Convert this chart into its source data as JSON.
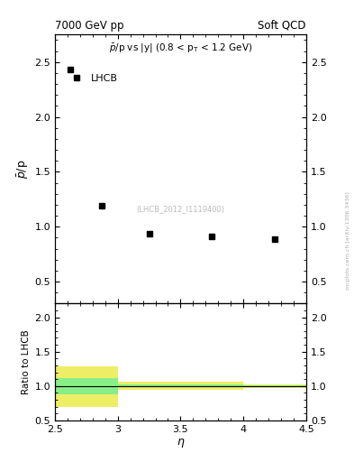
{
  "title_left": "7000 GeV pp",
  "title_right": "Soft QCD",
  "ylabel_main": "$\\bar{p}$/p",
  "ylabel_ratio": "Ratio to LHCB",
  "xlabel": "$\\eta$",
  "legend_label": "LHCB",
  "ref_label": "(LHCB_2012_I1119400)",
  "watermark": "mcplots.cern.ch [arXiv:1306.3436]",
  "main_xlim": [
    2.5,
    4.5
  ],
  "main_ylim": [
    0.3,
    2.75
  ],
  "ratio_xlim": [
    2.5,
    4.5
  ],
  "ratio_ylim": [
    0.5,
    2.2
  ],
  "data_x": [
    2.625,
    2.875,
    3.25,
    3.75,
    4.25
  ],
  "data_y": [
    2.43,
    1.19,
    0.94,
    0.91,
    0.89
  ],
  "yticks_main": [
    0.5,
    1.0,
    1.5,
    2.0,
    2.5
  ],
  "yticks_ratio": [
    0.5,
    1.0,
    1.5,
    2.0
  ],
  "xticks": [
    2.5,
    3.0,
    3.5,
    4.0,
    4.5
  ],
  "xticklabels": [
    "2.5",
    "3",
    "3.5",
    "4",
    "4.5"
  ],
  "green_color": "#88ee88",
  "yellow_color": "#eeee66",
  "bands": [
    {
      "xlo": 2.5,
      "xhi": 3.0,
      "ylo_y": 0.7,
      "yhi_y": 1.28,
      "ylo_g": 0.88,
      "yhi_g": 1.12
    },
    {
      "xlo": 3.0,
      "xhi": 3.5,
      "ylo_y": 0.94,
      "yhi_y": 1.06,
      "ylo_g": 0.98,
      "yhi_g": 1.02
    },
    {
      "xlo": 3.5,
      "xhi": 4.0,
      "ylo_y": 0.94,
      "yhi_y": 1.06,
      "ylo_g": 0.98,
      "yhi_g": 1.02
    },
    {
      "xlo": 4.0,
      "xhi": 4.5,
      "ylo_y": 0.97,
      "yhi_y": 1.03,
      "ylo_g": 0.99,
      "yhi_g": 1.01
    }
  ]
}
